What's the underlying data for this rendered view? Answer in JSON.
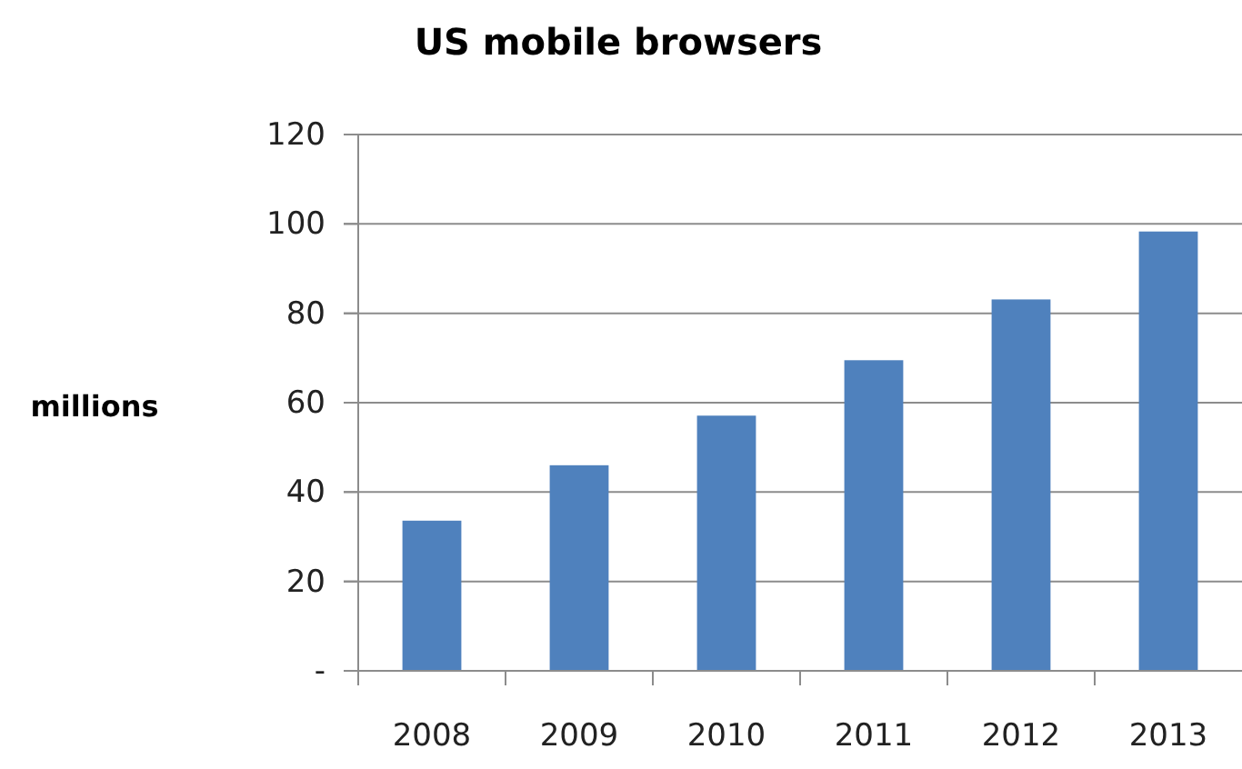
{
  "chart_data": {
    "type": "bar",
    "title": "US mobile browsers",
    "ylabel": "millions",
    "categories": [
      "2008",
      "2009",
      "2010",
      "2011",
      "2012",
      "2013"
    ],
    "values": [
      33.6,
      46,
      57.1,
      69.5,
      83.1,
      98.3
    ],
    "color": "#4f81bd",
    "ylim": [
      0,
      120
    ],
    "yticks": [
      {
        "value": 0,
        "label": "-"
      },
      20,
      40,
      60,
      80,
      100,
      120
    ],
    "grid": "y"
  }
}
